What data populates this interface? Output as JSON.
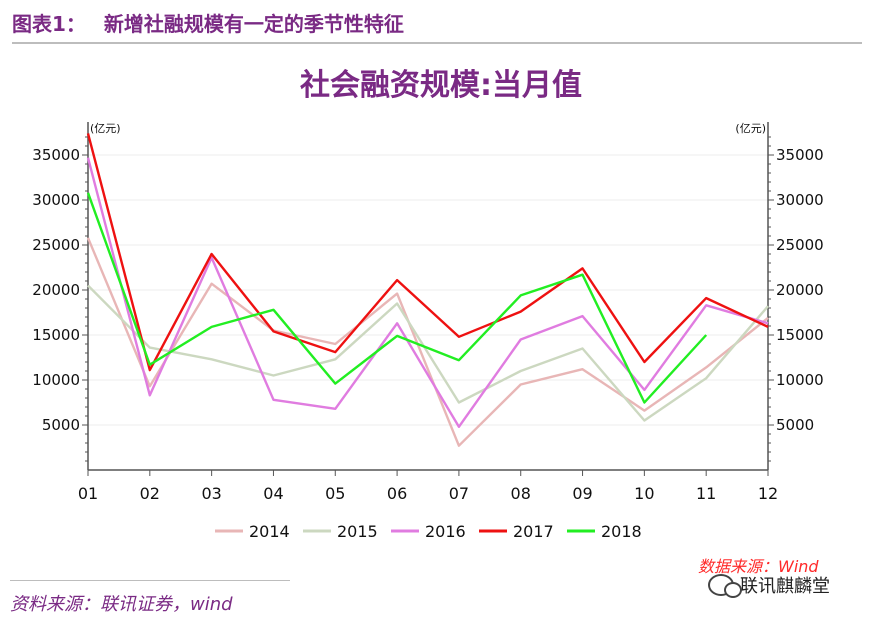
{
  "header": {
    "label": "图表1：",
    "title": "新增社融规模有一定的季节性特征"
  },
  "source_note": "资料来源：联讯证券，wind",
  "data_source": "数据来源：Wind",
  "watermark": "联讯麒麟堂",
  "chart_data": {
    "type": "line",
    "title": "社会融资规模:当月值",
    "ylabel_left": "(亿元)",
    "ylabel_right": "(亿元)",
    "x": [
      "01",
      "02",
      "03",
      "04",
      "05",
      "06",
      "07",
      "08",
      "09",
      "10",
      "11",
      "12"
    ],
    "ylim": [
      0,
      38000
    ],
    "yticks": [
      5000,
      10000,
      15000,
      20000,
      25000,
      30000,
      35000
    ],
    "grid": true,
    "legend_position": "bottom",
    "series": [
      {
        "name": "2014",
        "color": "#e8b6b6",
        "values": [
          25800,
          9300,
          20700,
          15500,
          14000,
          19600,
          2700,
          9500,
          11200,
          6600,
          11400,
          16900
        ]
      },
      {
        "name": "2015",
        "color": "#ccd8c0",
        "values": [
          20500,
          13600,
          12300,
          10500,
          12300,
          18500,
          7500,
          11000,
          13500,
          5500,
          10200,
          18200
        ]
      },
      {
        "name": "2016",
        "color": "#e07ce0",
        "values": [
          34700,
          8300,
          23600,
          7800,
          6800,
          16300,
          4800,
          14500,
          17100,
          8900,
          18300,
          16300
        ]
      },
      {
        "name": "2017",
        "color": "#ee1111",
        "values": [
          37400,
          11100,
          24000,
          15400,
          13100,
          21100,
          14800,
          17600,
          22400,
          12000,
          19100,
          15900
        ]
      },
      {
        "name": "2018",
        "color": "#22ee22",
        "values": [
          30800,
          11700,
          15900,
          17800,
          9600,
          14900,
          12200,
          19400,
          21700,
          7500,
          15000,
          null
        ]
      }
    ]
  }
}
